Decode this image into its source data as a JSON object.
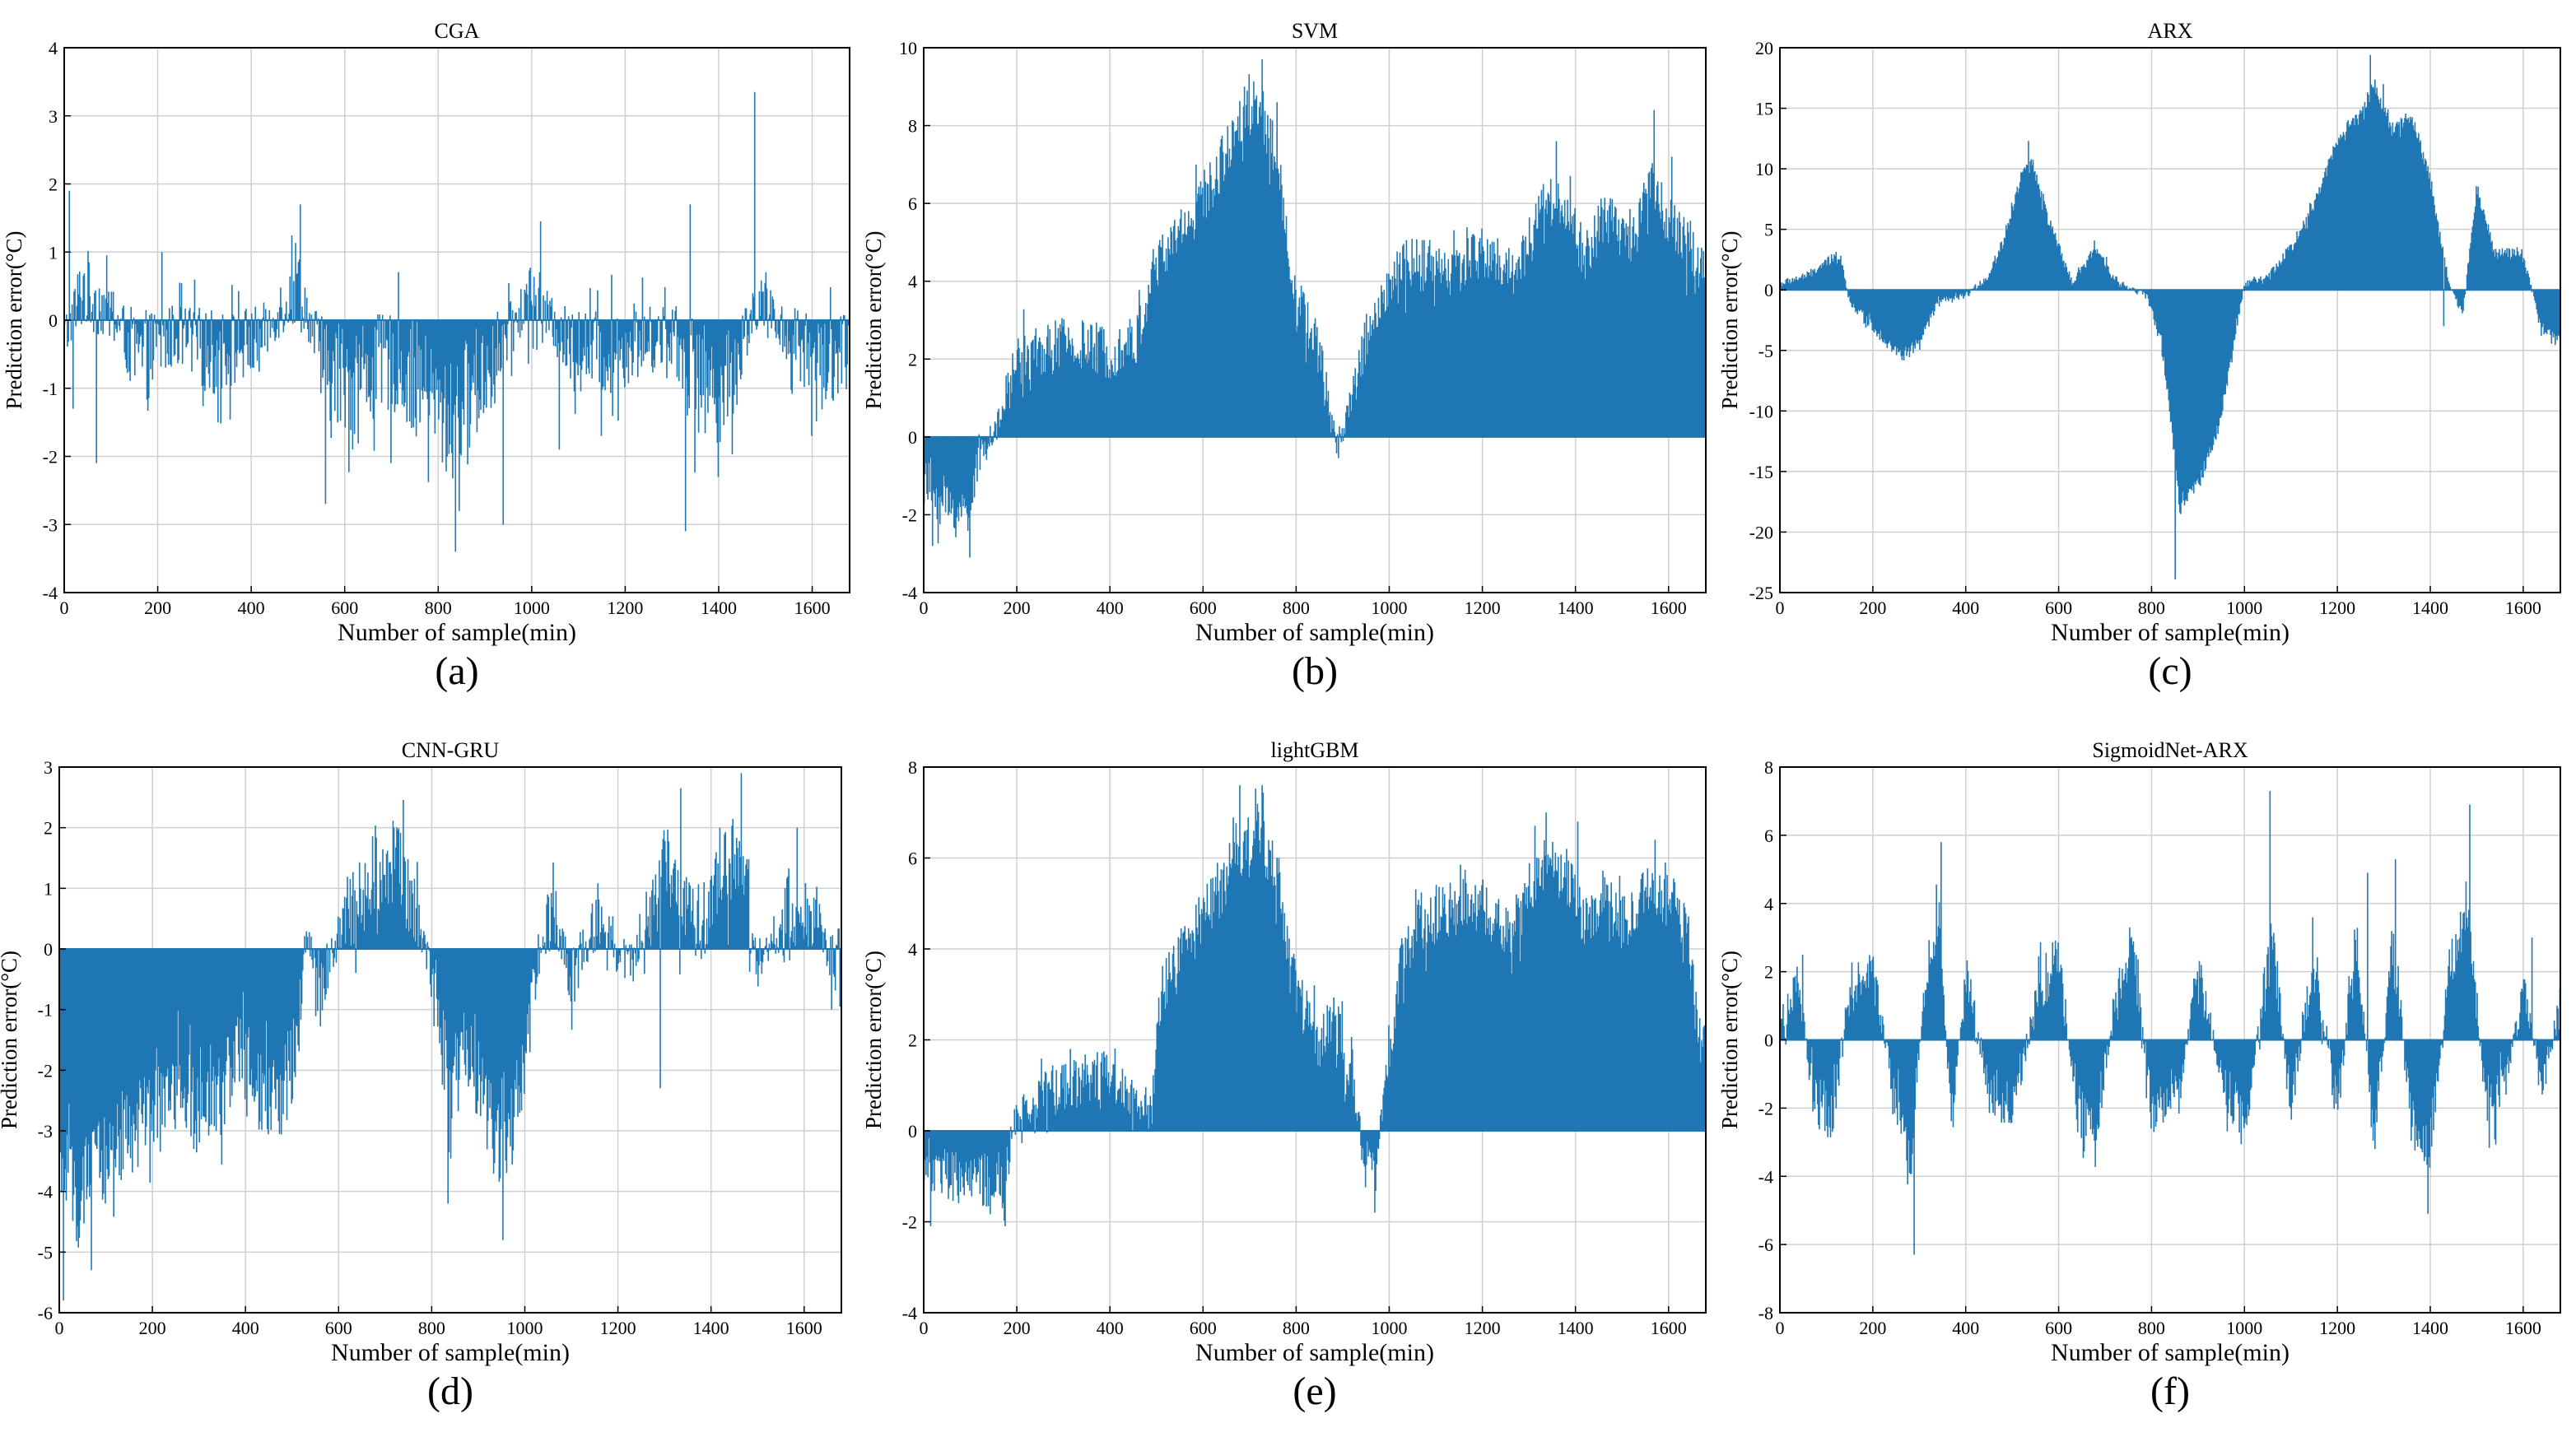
{
  "colors": {
    "bar": "#1f77b4",
    "grid": "#cfcfcf",
    "axis": "#000000"
  },
  "chart_data": [
    {
      "type": "bar",
      "panel_label": "(a)",
      "title": "CGA",
      "xlabel": "Number of sample(min)",
      "ylabel": "Prediction error(°C)",
      "xlim": [
        0,
        1680
      ],
      "ylim": [
        -4,
        4
      ],
      "xticks": [
        0,
        200,
        400,
        600,
        800,
        1000,
        1200,
        1400,
        1600
      ],
      "yticks": [
        -4,
        -3,
        -2,
        -1,
        0,
        1,
        2,
        3,
        4
      ],
      "grid": true,
      "amplitude": 0.85,
      "envelope": [
        [
          0,
          -0.3
        ],
        [
          40,
          0.5
        ],
        [
          100,
          0.1
        ],
        [
          160,
          -0.6
        ],
        [
          240,
          -0.2
        ],
        [
          320,
          -0.5
        ],
        [
          420,
          -0.3
        ],
        [
          500,
          0.6
        ],
        [
          560,
          -0.9
        ],
        [
          640,
          -0.8
        ],
        [
          700,
          -0.6
        ],
        [
          760,
          -0.9
        ],
        [
          820,
          -1.5
        ],
        [
          860,
          -1.1
        ],
        [
          920,
          -0.6
        ],
        [
          1000,
          0.4
        ],
        [
          1080,
          -0.4
        ],
        [
          1160,
          -0.5
        ],
        [
          1240,
          -0.3
        ],
        [
          1300,
          -0.2
        ],
        [
          1360,
          -0.9
        ],
        [
          1420,
          -1.0
        ],
        [
          1480,
          0.3
        ],
        [
          1560,
          -0.3
        ],
        [
          1620,
          -0.6
        ],
        [
          1680,
          -0.4
        ]
      ],
      "spikes": [
        [
          12,
          1.9
        ],
        [
          20,
          -1.3
        ],
        [
          70,
          -2.1
        ],
        [
          210,
          1.0
        ],
        [
          330,
          -1.5
        ],
        [
          505,
          1.7
        ],
        [
          560,
          -2.7
        ],
        [
          700,
          -2.1
        ],
        [
          838,
          -3.4
        ],
        [
          845,
          -2.8
        ],
        [
          940,
          -3.0
        ],
        [
          1020,
          1.45
        ],
        [
          1060,
          -1.9
        ],
        [
          1150,
          -1.7
        ],
        [
          1330,
          -3.1
        ],
        [
          1340,
          1.7
        ],
        [
          1400,
          -2.3
        ],
        [
          1478,
          3.35
        ],
        [
          1600,
          -1.7
        ]
      ]
    },
    {
      "type": "bar",
      "panel_label": "(b)",
      "title": "SVM",
      "xlabel": "Number of sample(min)",
      "ylabel": "Prediction error(°C)",
      "xlim": [
        0,
        1680
      ],
      "ylim": [
        -4,
        10
      ],
      "xticks": [
        0,
        200,
        400,
        600,
        800,
        1000,
        1200,
        1400,
        1600
      ],
      "yticks": [
        -4,
        -2,
        0,
        2,
        4,
        6,
        8,
        10
      ],
      "grid": true,
      "amplitude": 0.7,
      "envelope": [
        [
          0,
          -1.2
        ],
        [
          50,
          -1.8
        ],
        [
          90,
          -2.0
        ],
        [
          130,
          -0.2
        ],
        [
          160,
          0.3
        ],
        [
          200,
          2.0
        ],
        [
          300,
          2.4
        ],
        [
          400,
          2.2
        ],
        [
          460,
          2.5
        ],
        [
          490,
          4.2
        ],
        [
          560,
          5.5
        ],
        [
          620,
          6.5
        ],
        [
          680,
          8.2
        ],
        [
          720,
          8.6
        ],
        [
          760,
          7.0
        ],
        [
          800,
          3.5
        ],
        [
          840,
          2.6
        ],
        [
          870,
          0.8
        ],
        [
          890,
          -0.3
        ],
        [
          960,
          3.0
        ],
        [
          1040,
          4.5
        ],
        [
          1120,
          4.2
        ],
        [
          1200,
          4.8
        ],
        [
          1260,
          4.2
        ],
        [
          1300,
          5.0
        ],
        [
          1340,
          6.2
        ],
        [
          1380,
          5.8
        ],
        [
          1420,
          4.6
        ],
        [
          1460,
          5.6
        ],
        [
          1520,
          5.2
        ],
        [
          1560,
          6.6
        ],
        [
          1600,
          5.6
        ],
        [
          1660,
          4.5
        ],
        [
          1680,
          4.2
        ]
      ],
      "spikes": [
        [
          20,
          -2.8
        ],
        [
          100,
          -3.1
        ],
        [
          690,
          9.0
        ],
        [
          728,
          9.7
        ],
        [
          760,
          8.6
        ],
        [
          1360,
          7.6
        ],
        [
          1570,
          8.4
        ],
        [
          1608,
          7.2
        ]
      ]
    },
    {
      "type": "bar",
      "panel_label": "(c)",
      "title": "ARX",
      "xlabel": "Number of sample(min)",
      "ylabel": "Prediction error(°C)",
      "xlim": [
        0,
        1680
      ],
      "ylim": [
        -25,
        20
      ],
      "xticks": [
        0,
        200,
        400,
        600,
        800,
        1000,
        1200,
        1400,
        1600
      ],
      "yticks": [
        -25,
        -20,
        -15,
        -10,
        -5,
        0,
        5,
        10,
        15,
        20
      ],
      "grid": true,
      "amplitude": 0.6,
      "envelope": [
        [
          0,
          0.5
        ],
        [
          60,
          1.2
        ],
        [
          130,
          3.0
        ],
        [
          150,
          -1.0
        ],
        [
          200,
          -3.0
        ],
        [
          260,
          -5.5
        ],
        [
          300,
          -4.5
        ],
        [
          340,
          -1.0
        ],
        [
          400,
          -0.5
        ],
        [
          450,
          1.2
        ],
        [
          480,
          4.0
        ],
        [
          520,
          9.5
        ],
        [
          545,
          10.5
        ],
        [
          580,
          5.5
        ],
        [
          630,
          0.5
        ],
        [
          680,
          3.5
        ],
        [
          730,
          0.5
        ],
        [
          790,
          -0.5
        ],
        [
          820,
          -4.0
        ],
        [
          840,
          -10.0
        ],
        [
          860,
          -18.0
        ],
        [
          900,
          -16.0
        ],
        [
          940,
          -12.0
        ],
        [
          975,
          -5.0
        ],
        [
          1000,
          0.5
        ],
        [
          1050,
          1.0
        ],
        [
          1100,
          3.5
        ],
        [
          1150,
          7.0
        ],
        [
          1200,
          12.5
        ],
        [
          1250,
          14.5
        ],
        [
          1280,
          17.0
        ],
        [
          1320,
          13.0
        ],
        [
          1360,
          14.5
        ],
        [
          1400,
          9.0
        ],
        [
          1440,
          0.5
        ],
        [
          1470,
          -2.0
        ],
        [
          1500,
          8.5
        ],
        [
          1540,
          3.0
        ],
        [
          1600,
          3.0
        ],
        [
          1640,
          -3.5
        ],
        [
          1680,
          -4.0
        ]
      ],
      "spikes": [
        [
          536,
          12.3
        ],
        [
          852,
          -23.9
        ],
        [
          1272,
          19.4
        ],
        [
          1300,
          17.0
        ],
        [
          1430,
          -3.0
        ]
      ]
    },
    {
      "type": "bar",
      "panel_label": "(d)",
      "title": "CNN-GRU",
      "xlabel": "Number of sample(min)",
      "ylabel": "Prediction error(°C)",
      "xlim": [
        0,
        1680
      ],
      "ylim": [
        -6,
        3
      ],
      "xticks": [
        0,
        200,
        400,
        600,
        800,
        1000,
        1200,
        1400,
        1600
      ],
      "yticks": [
        -6,
        -5,
        -4,
        -3,
        -2,
        -1,
        0,
        1,
        2,
        3
      ],
      "grid": true,
      "amplitude": 0.75,
      "envelope": [
        [
          0,
          -3.5
        ],
        [
          40,
          -4.2
        ],
        [
          80,
          -3.6
        ],
        [
          140,
          -3.0
        ],
        [
          200,
          -2.8
        ],
        [
          260,
          -2.2
        ],
        [
          300,
          -2.8
        ],
        [
          340,
          -2.5
        ],
        [
          380,
          -1.6
        ],
        [
          420,
          -2.4
        ],
        [
          470,
          -2.6
        ],
        [
          510,
          -1.5
        ],
        [
          530,
          0.3
        ],
        [
          560,
          -0.7
        ],
        [
          600,
          0.2
        ],
        [
          640,
          0.8
        ],
        [
          680,
          1.3
        ],
        [
          720,
          1.5
        ],
        [
          760,
          0.8
        ],
        [
          800,
          -0.4
        ],
        [
          840,
          -2.2
        ],
        [
          880,
          -1.6
        ],
        [
          920,
          -2.8
        ],
        [
          960,
          -3.4
        ],
        [
          1000,
          -2.0
        ],
        [
          1020,
          -0.6
        ],
        [
          1060,
          0.8
        ],
        [
          1100,
          -0.6
        ],
        [
          1160,
          0.6
        ],
        [
          1220,
          -0.3
        ],
        [
          1260,
          0.2
        ],
        [
          1300,
          1.4
        ],
        [
          1340,
          0.8
        ],
        [
          1380,
          0.2
        ],
        [
          1420,
          1.1
        ],
        [
          1460,
          1.6
        ],
        [
          1500,
          -0.3
        ],
        [
          1560,
          0.6
        ],
        [
          1620,
          0.6
        ],
        [
          1660,
          -0.2
        ],
        [
          1680,
          -0.5
        ]
      ],
      "spikes": [
        [
          10,
          -5.8
        ],
        [
          70,
          -5.3
        ],
        [
          720,
          2.0
        ],
        [
          835,
          -4.2
        ],
        [
          953,
          -4.8
        ],
        [
          1292,
          -2.3
        ],
        [
          1335,
          2.65
        ],
        [
          1465,
          2.9
        ],
        [
          1585,
          2.0
        ],
        [
          1660,
          -1.0
        ]
      ]
    },
    {
      "type": "bar",
      "panel_label": "(e)",
      "title": "lightGBM",
      "xlabel": "Number of sample(min)",
      "ylabel": "Prediction error(°C)",
      "xlim": [
        0,
        1680
      ],
      "ylim": [
        -4,
        8
      ],
      "xticks": [
        0,
        200,
        400,
        600,
        800,
        1000,
        1200,
        1400,
        1600
      ],
      "yticks": [
        -4,
        -2,
        0,
        2,
        4,
        6,
        8
      ],
      "grid": true,
      "amplitude": 0.65,
      "envelope": [
        [
          0,
          -0.8
        ],
        [
          60,
          -1.0
        ],
        [
          130,
          -1.1
        ],
        [
          170,
          -1.4
        ],
        [
          200,
          0.3
        ],
        [
          260,
          0.8
        ],
        [
          320,
          1.1
        ],
        [
          380,
          1.3
        ],
        [
          420,
          1.2
        ],
        [
          460,
          0.5
        ],
        [
          490,
          0.4
        ],
        [
          510,
          3.0
        ],
        [
          560,
          4.0
        ],
        [
          620,
          5.0
        ],
        [
          680,
          6.2
        ],
        [
          720,
          6.6
        ],
        [
          760,
          5.6
        ],
        [
          800,
          3.2
        ],
        [
          850,
          1.8
        ],
        [
          880,
          2.4
        ],
        [
          920,
          1.4
        ],
        [
          940,
          -0.3
        ],
        [
          970,
          -1.1
        ],
        [
          985,
          0.5
        ],
        [
          1020,
          3.5
        ],
        [
          1060,
          4.6
        ],
        [
          1120,
          4.8
        ],
        [
          1200,
          5.0
        ],
        [
          1260,
          4.2
        ],
        [
          1300,
          5.4
        ],
        [
          1340,
          6.0
        ],
        [
          1380,
          5.6
        ],
        [
          1420,
          4.6
        ],
        [
          1460,
          5.0
        ],
        [
          1500,
          4.6
        ],
        [
          1560,
          5.2
        ],
        [
          1600,
          5.1
        ],
        [
          1640,
          4.6
        ],
        [
          1660,
          2.4
        ],
        [
          1680,
          1.8
        ]
      ],
      "spikes": [
        [
          15,
          -2.1
        ],
        [
          175,
          -2.1
        ],
        [
          680,
          7.6
        ],
        [
          728,
          7.6
        ],
        [
          970,
          -1.8
        ],
        [
          1338,
          7.0
        ],
        [
          1405,
          6.8
        ],
        [
          1572,
          6.4
        ]
      ]
    },
    {
      "type": "bar",
      "panel_label": "(f)",
      "title": "SigmoidNet-ARX",
      "xlabel": "Number of sample(min)",
      "ylabel": "Prediction error(°C)",
      "xlim": [
        0,
        1680
      ],
      "ylim": [
        -8,
        8
      ],
      "xticks": [
        0,
        200,
        400,
        600,
        800,
        1000,
        1200,
        1400,
        1600
      ],
      "yticks": [
        -8,
        -6,
        -4,
        -2,
        0,
        2,
        4,
        6,
        8
      ],
      "grid": true,
      "amplitude": 0.8,
      "envelope": [
        [
          0,
          0.5
        ],
        [
          40,
          1.5
        ],
        [
          70,
          -1.5
        ],
        [
          110,
          -2.5
        ],
        [
          150,
          1.5
        ],
        [
          200,
          2.0
        ],
        [
          250,
          -2.0
        ],
        [
          280,
          -3.8
        ],
        [
          310,
          1.5
        ],
        [
          340,
          3.5
        ],
        [
          370,
          -2.5
        ],
        [
          400,
          2.0
        ],
        [
          450,
          -1.5
        ],
        [
          500,
          -2.0
        ],
        [
          560,
          1.5
        ],
        [
          600,
          2.5
        ],
        [
          640,
          -2.0
        ],
        [
          680,
          -2.5
        ],
        [
          720,
          1.0
        ],
        [
          760,
          2.5
        ],
        [
          800,
          -2.0
        ],
        [
          860,
          -1.5
        ],
        [
          900,
          2.0
        ],
        [
          960,
          -1.5
        ],
        [
          1000,
          -2.5
        ],
        [
          1060,
          3.0
        ],
        [
          1100,
          -2.0
        ],
        [
          1150,
          2.5
        ],
        [
          1200,
          -2.0
        ],
        [
          1240,
          3.0
        ],
        [
          1280,
          -3.0
        ],
        [
          1320,
          3.0
        ],
        [
          1360,
          -2.5
        ],
        [
          1400,
          -3.0
        ],
        [
          1440,
          2.0
        ],
        [
          1480,
          4.0
        ],
        [
          1520,
          -2.0
        ],
        [
          1560,
          -1.5
        ],
        [
          1600,
          1.5
        ],
        [
          1640,
          -1.5
        ],
        [
          1680,
          1.0
        ]
      ],
      "spikes": [
        [
          50,
          2.5
        ],
        [
          290,
          -6.3
        ],
        [
          348,
          5.8
        ],
        [
          1055,
          7.3
        ],
        [
          1265,
          4.9
        ],
        [
          1325,
          5.3
        ],
        [
          1485,
          6.9
        ],
        [
          1395,
          -5.1
        ],
        [
          1620,
          3.0
        ]
      ]
    }
  ]
}
